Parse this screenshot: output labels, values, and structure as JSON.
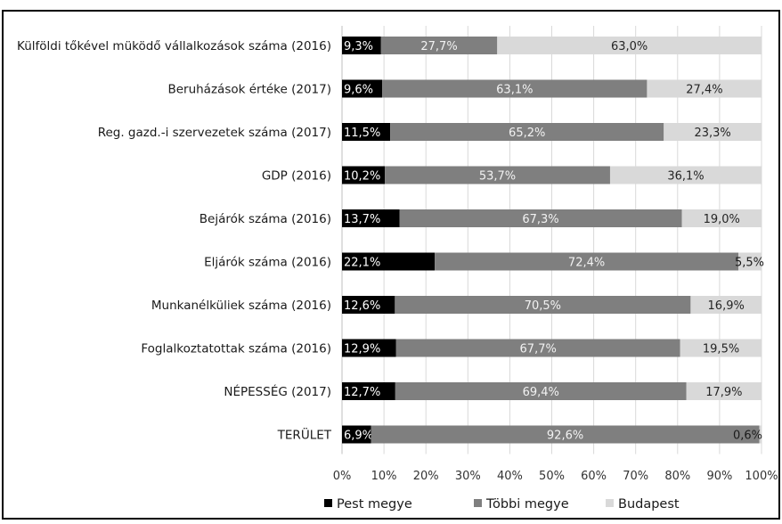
{
  "chart_data": {
    "type": "bar",
    "stacked": true,
    "orientation": "horizontal",
    "normalized": true,
    "categories": [
      "Külföldi tőkével müködő vállalkozások száma (2016)",
      "Beruházások értéke (2017)",
      "Reg. gazd.-i szervezetek száma (2017)",
      "GDP (2016)",
      "Bejárók száma (2016)",
      "Eljárók száma (2016)",
      "Munkanélküliek száma (2016)",
      "Foglalkoztatottak száma (2016)",
      "NÉPESSÉG (2017)",
      "TERÜLET"
    ],
    "series": [
      {
        "name": "Pest megye",
        "color": "#000000",
        "values": [
          9.3,
          9.6,
          11.5,
          10.2,
          13.7,
          22.1,
          12.6,
          12.9,
          12.7,
          6.9
        ],
        "labels": [
          "9,3%",
          "9,6%",
          "11,5%",
          "10,2%",
          "13,7%",
          "22,1%",
          "12,6%",
          "12,9%",
          "12,7%",
          "6,9%"
        ]
      },
      {
        "name": "Többi megye",
        "color": "#7f7f7f",
        "values": [
          27.7,
          63.1,
          65.2,
          53.7,
          67.3,
          72.4,
          70.5,
          67.7,
          69.4,
          92.6
        ],
        "labels": [
          "27,7%",
          "63,1%",
          "65,2%",
          "53,7%",
          "67,3%",
          "72,4%",
          "70,5%",
          "67,7%",
          "69,4%",
          "92,6%"
        ]
      },
      {
        "name": "Budapest",
        "color": "#d9d9d9",
        "values": [
          63.0,
          27.4,
          23.3,
          36.1,
          19.0,
          5.5,
          16.9,
          19.5,
          17.9,
          0.6
        ],
        "labels": [
          "63,0%",
          "27,4%",
          "23,3%",
          "36,1%",
          "19,0%",
          "5,5%",
          "16,9%",
          "19,5%",
          "17,9%",
          "0,6%"
        ]
      }
    ],
    "xlim": [
      0,
      100
    ],
    "xticks": [
      "0%",
      "10%",
      "20%",
      "30%",
      "40%",
      "50%",
      "60%",
      "70%",
      "80%",
      "90%",
      "100%"
    ],
    "grid": true,
    "legend": "bottom"
  }
}
